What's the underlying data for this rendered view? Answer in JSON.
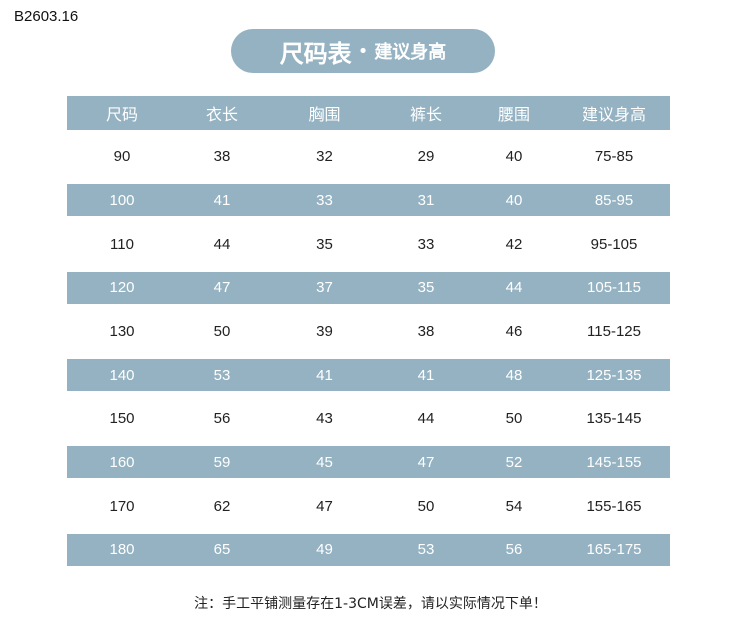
{
  "code": "B2603.16",
  "title": {
    "main": "尺码表",
    "dot": "•",
    "sub": "建议身高"
  },
  "accent_color": "#94b2c2",
  "table": {
    "headers": [
      "尺码",
      "衣长",
      "胸围",
      "裤长",
      "腰围",
      "建议身高"
    ],
    "rows": [
      [
        "90",
        "38",
        "32",
        "29",
        "40",
        "75-85"
      ],
      [
        "100",
        "41",
        "33",
        "31",
        "40",
        "85-95"
      ],
      [
        "110",
        "44",
        "35",
        "33",
        "42",
        "95-105"
      ],
      [
        "120",
        "47",
        "37",
        "35",
        "44",
        "105-115"
      ],
      [
        "130",
        "50",
        "39",
        "38",
        "46",
        "115-125"
      ],
      [
        "140",
        "53",
        "41",
        "41",
        "48",
        "125-135"
      ],
      [
        "150",
        "56",
        "43",
        "44",
        "50",
        "135-145"
      ],
      [
        "160",
        "59",
        "45",
        "47",
        "52",
        "145-155"
      ],
      [
        "170",
        "62",
        "47",
        "50",
        "54",
        "155-165"
      ],
      [
        "180",
        "65",
        "49",
        "53",
        "56",
        "165-175"
      ]
    ]
  },
  "note": "注：手工平铺测量存在1-3CM误差，请以实际情况下单！"
}
